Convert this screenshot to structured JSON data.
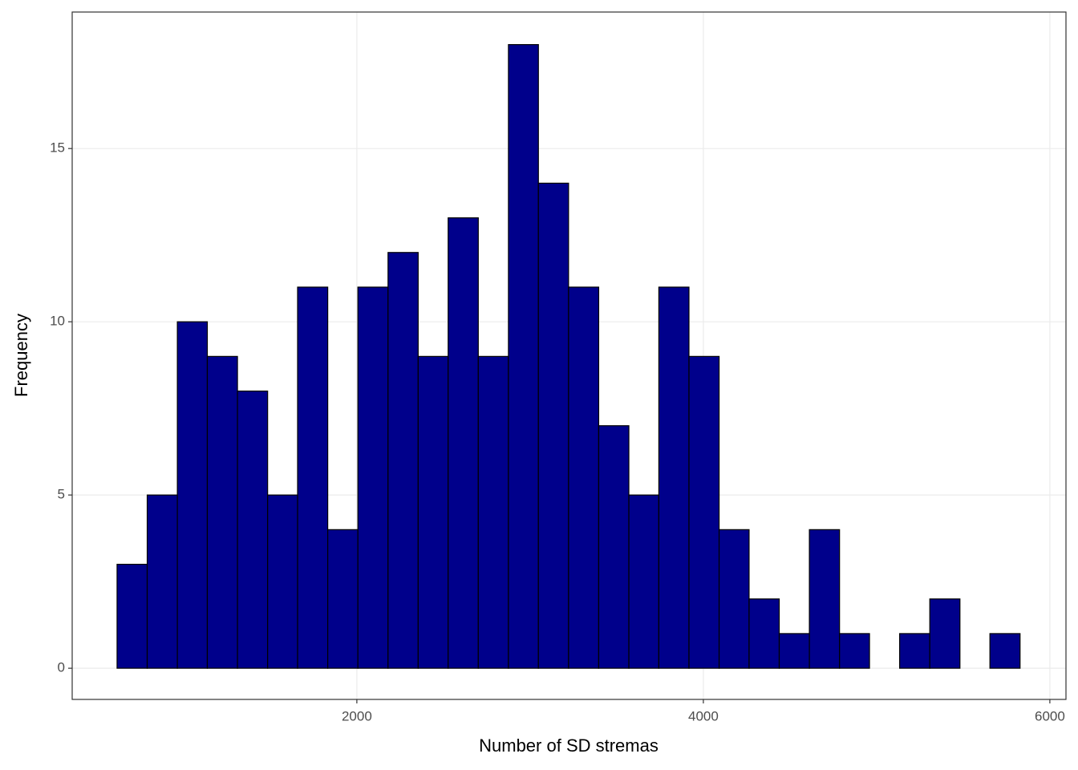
{
  "chart_data": {
    "type": "histogram",
    "x_label": "Number of SD stremas",
    "y_label": "Frequency",
    "bins": [
      616,
      790,
      964,
      1137,
      1311,
      1485,
      1658,
      1832,
      2006,
      2180,
      2354,
      2527,
      2701,
      2875,
      3048,
      3222,
      3396,
      3570,
      3743,
      3917,
      4091,
      4264,
      4438,
      4612,
      4786,
      4959,
      5133,
      5307,
      5481,
      5654,
      5828
    ],
    "values": [
      3,
      5,
      10,
      9,
      8,
      5,
      11,
      4,
      11,
      12,
      9,
      13,
      9,
      18,
      14,
      11,
      7,
      5,
      11,
      9,
      4,
      2,
      1,
      4,
      1,
      0,
      1,
      2,
      0,
      1
    ],
    "color": "#00008b",
    "xlim": [
      357,
      6093
    ],
    "xticks": [
      2000,
      4000,
      6000
    ],
    "ylim": [
      -0.9,
      18.94
    ],
    "yticks": [
      0,
      5,
      10,
      15
    ],
    "grid": true
  }
}
